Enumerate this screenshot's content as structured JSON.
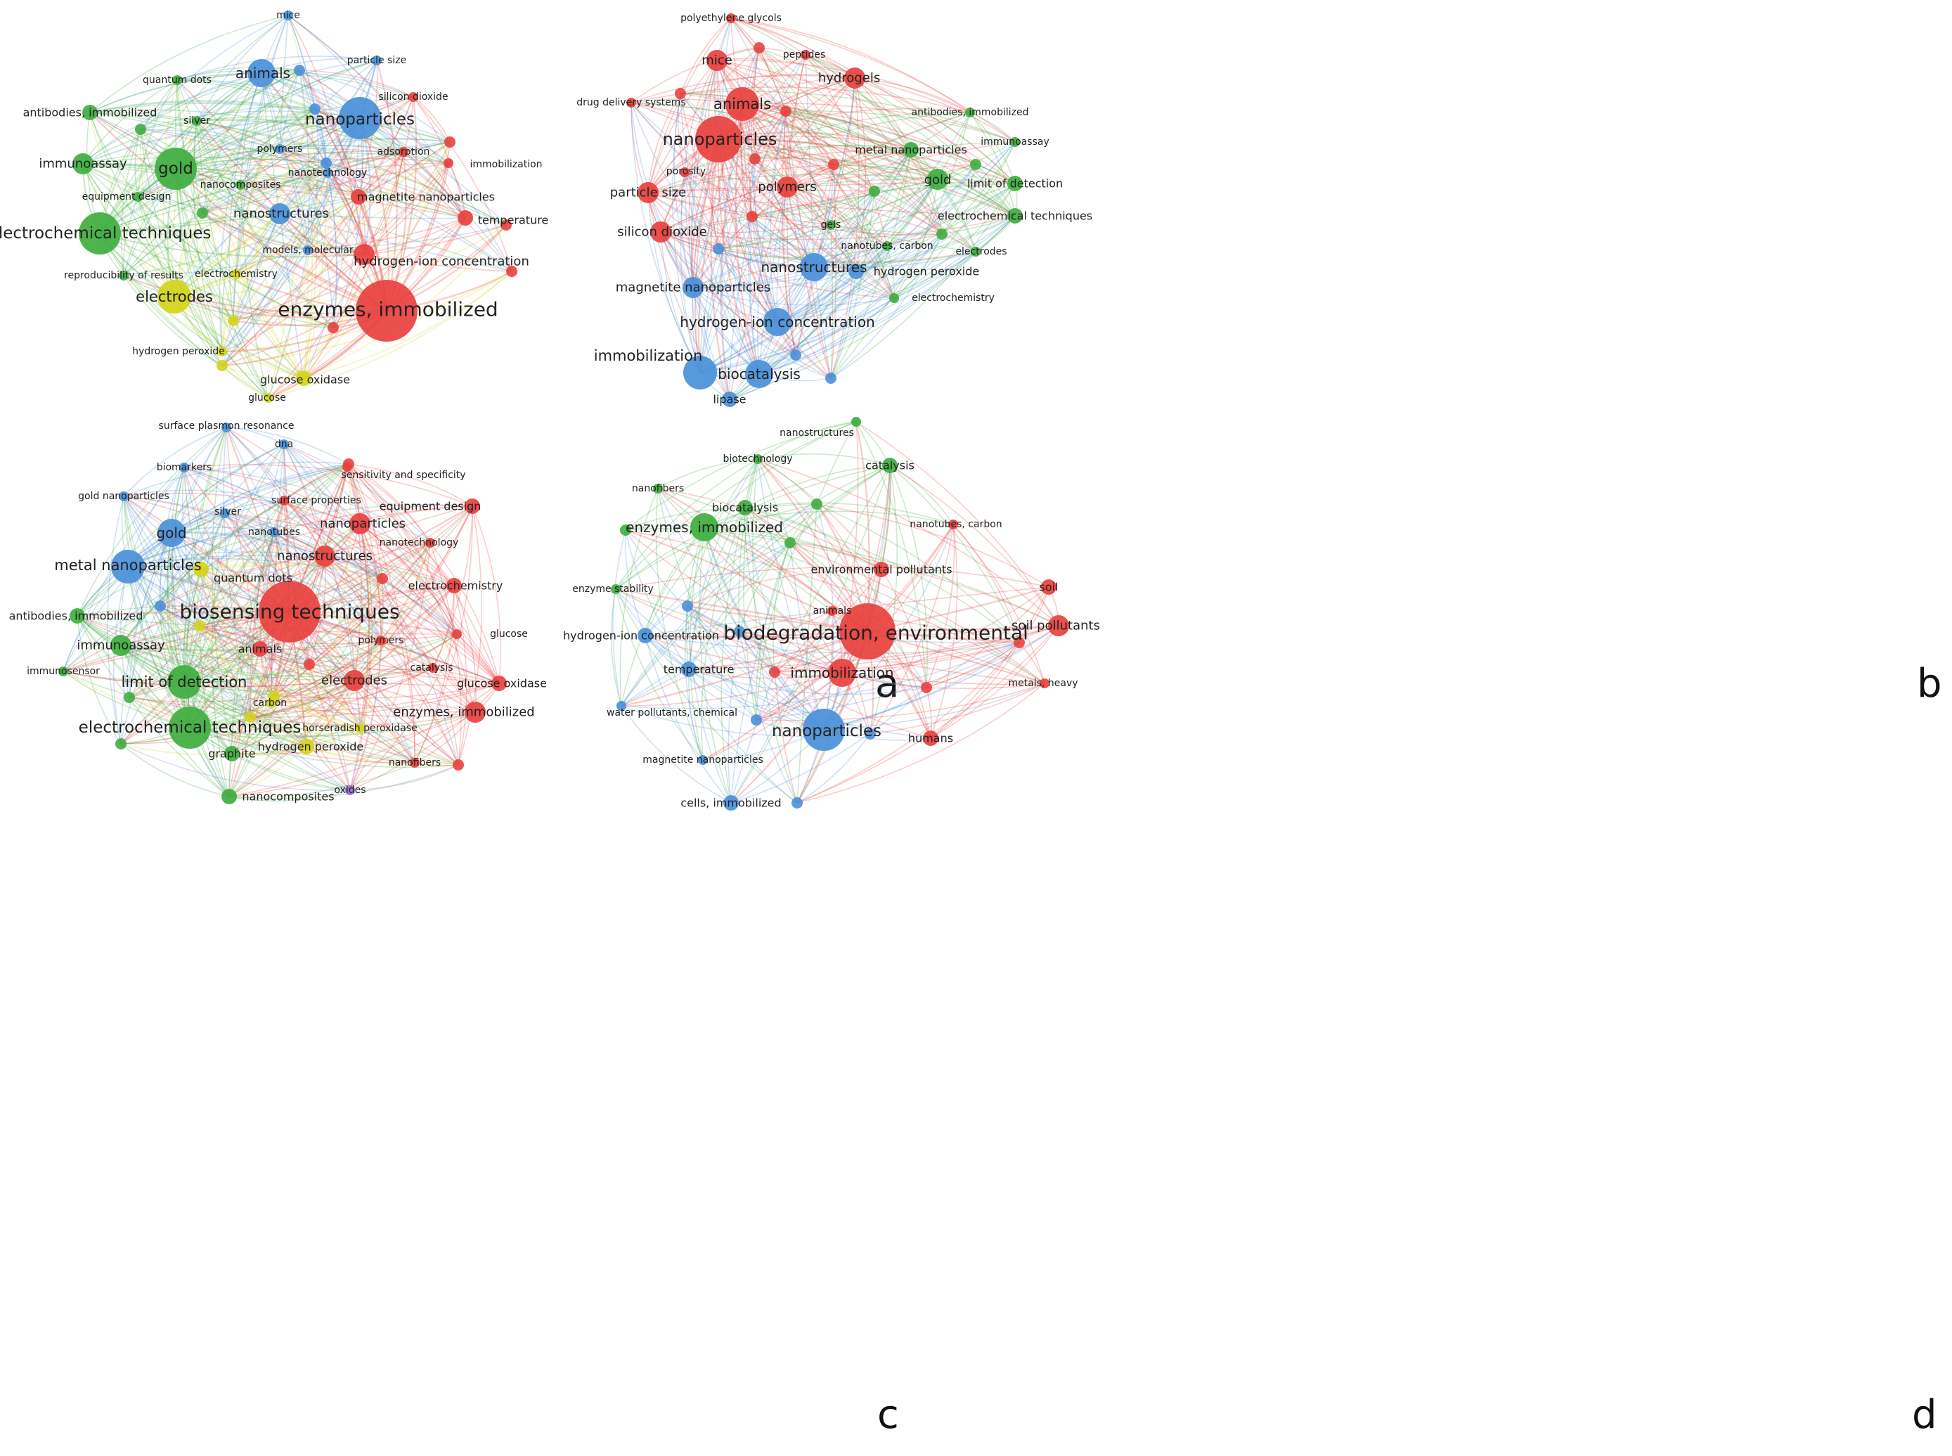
{
  "colors": {
    "red": "#e8413e",
    "green": "#3fae3f",
    "blue": "#4a90d9",
    "yellow": "#d4d41c",
    "purple": "#9b6ad9"
  },
  "panels": [
    {
      "letter": "a",
      "nodes": [
        {
          "label": "mice",
          "c": "blue",
          "w": 1
        },
        {
          "label": "animals",
          "c": "blue",
          "w": 4
        },
        {
          "label": "particle size",
          "c": "blue",
          "w": 1
        },
        {
          "label": "quantum dots",
          "c": "green",
          "w": 1
        },
        {
          "label": "silicon dioxide",
          "c": "red",
          "w": 1
        },
        {
          "label": "antibodies, immobilized",
          "c": "green",
          "w": 2
        },
        {
          "label": "nanoparticles",
          "c": "blue",
          "w": 6
        },
        {
          "label": "silver",
          "c": "green",
          "w": 1
        },
        {
          "label": "polymers",
          "c": "blue",
          "w": 1
        },
        {
          "label": "adsorption",
          "c": "red",
          "w": 1
        },
        {
          "label": "immunoassay",
          "c": "green",
          "w": 3
        },
        {
          "label": "gold",
          "c": "green",
          "w": 6
        },
        {
          "label": "nanotechnology",
          "c": "blue",
          "w": 1
        },
        {
          "label": "immobilization",
          "c": "red",
          "w": 1
        },
        {
          "label": "nanocomposites",
          "c": "green",
          "w": 1
        },
        {
          "label": "equipment design",
          "c": "green",
          "w": 1
        },
        {
          "label": "magnetite nanoparticles",
          "c": "red",
          "w": 2
        },
        {
          "label": "nanostructures",
          "c": "blue",
          "w": 3
        },
        {
          "label": "temperature",
          "c": "red",
          "w": 2
        },
        {
          "label": "electrochemical techniques",
          "c": "green",
          "w": 6
        },
        {
          "label": "models, molecular",
          "c": "blue",
          "w": 1
        },
        {
          "label": "hydrogen-ion concentration",
          "c": "red",
          "w": 3
        },
        {
          "label": "reproducibility of results",
          "c": "green",
          "w": 1
        },
        {
          "label": "electrochemistry",
          "c": "yellow",
          "w": 1
        },
        {
          "label": "electrodes",
          "c": "yellow",
          "w": 5
        },
        {
          "label": "enzymes, immobilized",
          "c": "red",
          "w": 10
        },
        {
          "label": "hydrogen peroxide",
          "c": "yellow",
          "w": 1
        },
        {
          "label": "glucose oxidase",
          "c": "yellow",
          "w": 2
        },
        {
          "label": "glucose",
          "c": "yellow",
          "w": 1
        }
      ]
    },
    {
      "letter": "b",
      "nodes": [
        {
          "label": "polyethylene glycols",
          "c": "red",
          "w": 1
        },
        {
          "label": "peptides",
          "c": "red",
          "w": 1
        },
        {
          "label": "mice",
          "c": "red",
          "w": 3
        },
        {
          "label": "hydrogels",
          "c": "red",
          "w": 3
        },
        {
          "label": "drug delivery systems",
          "c": "red",
          "w": 1
        },
        {
          "label": "animals",
          "c": "red",
          "w": 5
        },
        {
          "label": "antibodies, immobilized",
          "c": "green",
          "w": 1
        },
        {
          "label": "immunoassay",
          "c": "green",
          "w": 1
        },
        {
          "label": "nanoparticles",
          "c": "red",
          "w": 7
        },
        {
          "label": "metal nanoparticles",
          "c": "green",
          "w": 2
        },
        {
          "label": "porosity",
          "c": "red",
          "w": 1
        },
        {
          "label": "gold",
          "c": "green",
          "w": 3
        },
        {
          "label": "limit of detection",
          "c": "green",
          "w": 2
        },
        {
          "label": "particle size",
          "c": "red",
          "w": 3
        },
        {
          "label": "polymers",
          "c": "red",
          "w": 3
        },
        {
          "label": "electrochemical techniques",
          "c": "green",
          "w": 2
        },
        {
          "label": "silicon dioxide",
          "c": "red",
          "w": 3
        },
        {
          "label": "gels",
          "c": "green",
          "w": 1
        },
        {
          "label": "nanotubes, carbon",
          "c": "green",
          "w": 1
        },
        {
          "label": "electrodes",
          "c": "green",
          "w": 1
        },
        {
          "label": "nanostructures",
          "c": "blue",
          "w": 4
        },
        {
          "label": "hydrogen peroxide",
          "c": "blue",
          "w": 2
        },
        {
          "label": "magnetite nanoparticles",
          "c": "blue",
          "w": 3
        },
        {
          "label": "electrochemistry",
          "c": "green",
          "w": 1
        },
        {
          "label": "hydrogen-ion concentration",
          "c": "blue",
          "w": 4
        },
        {
          "label": "immobilization",
          "c": "blue",
          "w": 5
        },
        {
          "label": "biocatalysis",
          "c": "blue",
          "w": 4
        },
        {
          "label": "lipase",
          "c": "blue",
          "w": 2
        }
      ]
    },
    {
      "letter": "c",
      "nodes": [
        {
          "label": "surface plasmon resonance",
          "c": "blue",
          "w": 1
        },
        {
          "label": "dna",
          "c": "blue",
          "w": 1
        },
        {
          "label": "biomarkers",
          "c": "blue",
          "w": 1
        },
        {
          "label": "sensitivity and specificity",
          "c": "red",
          "w": 1
        },
        {
          "label": "gold nanoparticles",
          "c": "blue",
          "w": 1
        },
        {
          "label": "surface properties",
          "c": "red",
          "w": 1
        },
        {
          "label": "equipment design",
          "c": "red",
          "w": 2
        },
        {
          "label": "silver",
          "c": "blue",
          "w": 1
        },
        {
          "label": "nanoparticles",
          "c": "red",
          "w": 3
        },
        {
          "label": "gold",
          "c": "blue",
          "w": 4
        },
        {
          "label": "nanotubes",
          "c": "blue",
          "w": 1
        },
        {
          "label": "nanotechnology",
          "c": "red",
          "w": 1
        },
        {
          "label": "nanostructures",
          "c": "red",
          "w": 3
        },
        {
          "label": "metal nanoparticles",
          "c": "blue",
          "w": 5
        },
        {
          "label": "quantum dots",
          "c": "yellow",
          "w": 2
        },
        {
          "label": "electrochemistry",
          "c": "red",
          "w": 2
        },
        {
          "label": "biosensing techniques",
          "c": "red",
          "w": 10
        },
        {
          "label": "antibodies, immobilized",
          "c": "green",
          "w": 2
        },
        {
          "label": "glucose",
          "c": "red",
          "w": 1
        },
        {
          "label": "polymers",
          "c": "red",
          "w": 1
        },
        {
          "label": "immunoassay",
          "c": "green",
          "w": 3
        },
        {
          "label": "animals",
          "c": "red",
          "w": 2
        },
        {
          "label": "catalysis",
          "c": "red",
          "w": 1
        },
        {
          "label": "immunosensor",
          "c": "green",
          "w": 1
        },
        {
          "label": "limit of detection",
          "c": "green",
          "w": 5
        },
        {
          "label": "electrodes",
          "c": "red",
          "w": 3
        },
        {
          "label": "glucose oxidase",
          "c": "red",
          "w": 2
        },
        {
          "label": "carbon",
          "c": "yellow",
          "w": 1
        },
        {
          "label": "enzymes, immobilized",
          "c": "red",
          "w": 3
        },
        {
          "label": "electrochemical techniques",
          "c": "green",
          "w": 6
        },
        {
          "label": "horseradish peroxidase",
          "c": "yellow",
          "w": 1
        },
        {
          "label": "hydrogen peroxide",
          "c": "yellow",
          "w": 2
        },
        {
          "label": "graphite",
          "c": "green",
          "w": 2
        },
        {
          "label": "nanofibers",
          "c": "red",
          "w": 1
        },
        {
          "label": "oxides",
          "c": "purple",
          "w": 1
        },
        {
          "label": "nanocomposites",
          "c": "green",
          "w": 2
        }
      ]
    },
    {
      "letter": "d",
      "nodes": [
        {
          "label": "nanostructures",
          "c": "green",
          "w": 1
        },
        {
          "label": "biotechnology",
          "c": "green",
          "w": 1
        },
        {
          "label": "catalysis",
          "c": "green",
          "w": 2
        },
        {
          "label": "nanofibers",
          "c": "green",
          "w": 1
        },
        {
          "label": "biocatalysis",
          "c": "green",
          "w": 2
        },
        {
          "label": "nanotubes, carbon",
          "c": "red",
          "w": 1
        },
        {
          "label": "enzymes, immobilized",
          "c": "green",
          "w": 4
        },
        {
          "label": "environmental pollutants",
          "c": "red",
          "w": 2
        },
        {
          "label": "soil",
          "c": "red",
          "w": 2
        },
        {
          "label": "enzyme stability",
          "c": "green",
          "w": 1
        },
        {
          "label": "animals",
          "c": "red",
          "w": 1
        },
        {
          "label": "soil pollutants",
          "c": "red",
          "w": 3
        },
        {
          "label": "biodegradation, environmental",
          "c": "red",
          "w": 9
        },
        {
          "label": "hydrogen-ion concentration",
          "c": "blue",
          "w": 2
        },
        {
          "label": "temperature",
          "c": "blue",
          "w": 2
        },
        {
          "label": "immobilization",
          "c": "red",
          "w": 4
        },
        {
          "label": "metals, heavy",
          "c": "red",
          "w": 1
        },
        {
          "label": "water pollutants, chemical",
          "c": "blue",
          "w": 1
        },
        {
          "label": "nanoparticles",
          "c": "blue",
          "w": 6
        },
        {
          "label": "humans",
          "c": "red",
          "w": 2
        },
        {
          "label": "magnetite nanoparticles",
          "c": "blue",
          "w": 1
        },
        {
          "label": "cells, immobilized",
          "c": "blue",
          "w": 2
        }
      ]
    }
  ]
}
